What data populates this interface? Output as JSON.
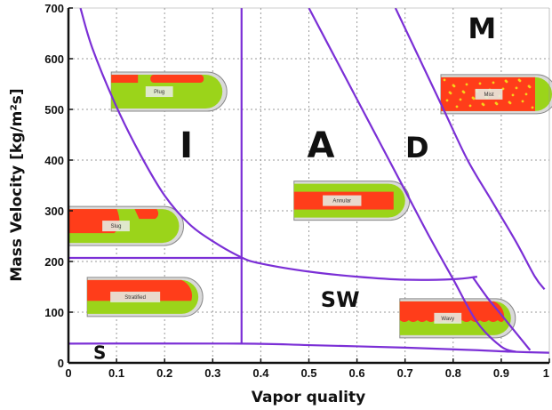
{
  "chart_data": {
    "type": "line",
    "title": "",
    "xlabel": "Vapor quality",
    "ylabel": "Mass Velocity [kg/m²s]",
    "xlim": [
      0,
      1
    ],
    "ylim": [
      0,
      700
    ],
    "xticks": [
      "0",
      "0.1",
      "0.2",
      "0.3",
      "0.4",
      "0.5",
      "0.6",
      "0.7",
      "0.8",
      "0.9",
      "1"
    ],
    "yticks": [
      "0",
      "100",
      "200",
      "300",
      "400",
      "500",
      "600",
      "700"
    ],
    "grid": true,
    "curve_color": "#7b2fd6",
    "series": [
      {
        "points": [
          [
            0.025,
            700
          ],
          [
            0.05,
            620
          ],
          [
            0.1,
            505
          ],
          [
            0.15,
            410
          ],
          [
            0.2,
            330
          ],
          [
            0.25,
            275
          ],
          [
            0.3,
            240
          ],
          [
            0.36,
            208
          ],
          [
            0.4,
            196
          ],
          [
            0.5,
            180
          ],
          [
            0.6,
            170
          ],
          [
            0.7,
            164
          ],
          [
            0.8,
            165
          ],
          [
            0.85,
            170
          ]
        ]
      },
      {
        "points": [
          [
            0.36,
            700
          ],
          [
            0.36,
            38
          ]
        ]
      },
      {
        "points": [
          [
            0.0,
            207
          ],
          [
            0.36,
            207
          ]
        ]
      },
      {
        "points": [
          [
            0.0,
            38
          ],
          [
            0.36,
            38
          ],
          [
            0.5,
            35
          ],
          [
            0.7,
            30
          ],
          [
            0.85,
            25
          ],
          [
            0.92,
            22
          ],
          [
            1.0,
            20
          ]
        ]
      },
      {
        "points": [
          [
            0.5,
            700
          ],
          [
            0.55,
            610
          ],
          [
            0.6,
            520
          ],
          [
            0.65,
            430
          ],
          [
            0.7,
            340
          ],
          [
            0.75,
            250
          ],
          [
            0.8,
            165
          ],
          [
            0.85,
            80
          ],
          [
            0.9,
            32
          ],
          [
            0.93,
            22
          ]
        ]
      },
      {
        "points": [
          [
            0.68,
            700
          ],
          [
            0.73,
            600
          ],
          [
            0.78,
            500
          ],
          [
            0.83,
            400
          ],
          [
            0.88,
            320
          ],
          [
            0.93,
            240
          ],
          [
            0.97,
            170
          ],
          [
            0.99,
            145
          ]
        ]
      },
      {
        "points": [
          [
            0.84,
            170
          ],
          [
            0.87,
            130
          ],
          [
            0.9,
            95
          ],
          [
            0.93,
            60
          ],
          [
            0.96,
            25
          ]
        ]
      }
    ],
    "region_labels": [
      {
        "text": "I",
        "x": 0.245,
        "y": 430,
        "size": 40
      },
      {
        "text": "A",
        "x": 0.525,
        "y": 430,
        "size": 40
      },
      {
        "text": "D",
        "x": 0.725,
        "y": 425,
        "size": 32
      },
      {
        "text": "M",
        "x": 0.86,
        "y": 660,
        "size": 32
      },
      {
        "text": "SW",
        "x": 0.565,
        "y": 125,
        "size": 24
      },
      {
        "text": "S",
        "x": 0.065,
        "y": 20,
        "size": 20
      }
    ],
    "flow_images": [
      {
        "label": "Plug",
        "x": 0.2,
        "y": 535
      },
      {
        "label": "Slug",
        "x": 0.11,
        "y": 270
      },
      {
        "label": "Stratified",
        "x": 0.15,
        "y": 130
      },
      {
        "label": "Annular",
        "x": 0.58,
        "y": 320
      },
      {
        "label": "Wavy",
        "x": 0.8,
        "y": 88
      },
      {
        "label": "Mist",
        "x": 0.92,
        "y": 530
      }
    ]
  }
}
